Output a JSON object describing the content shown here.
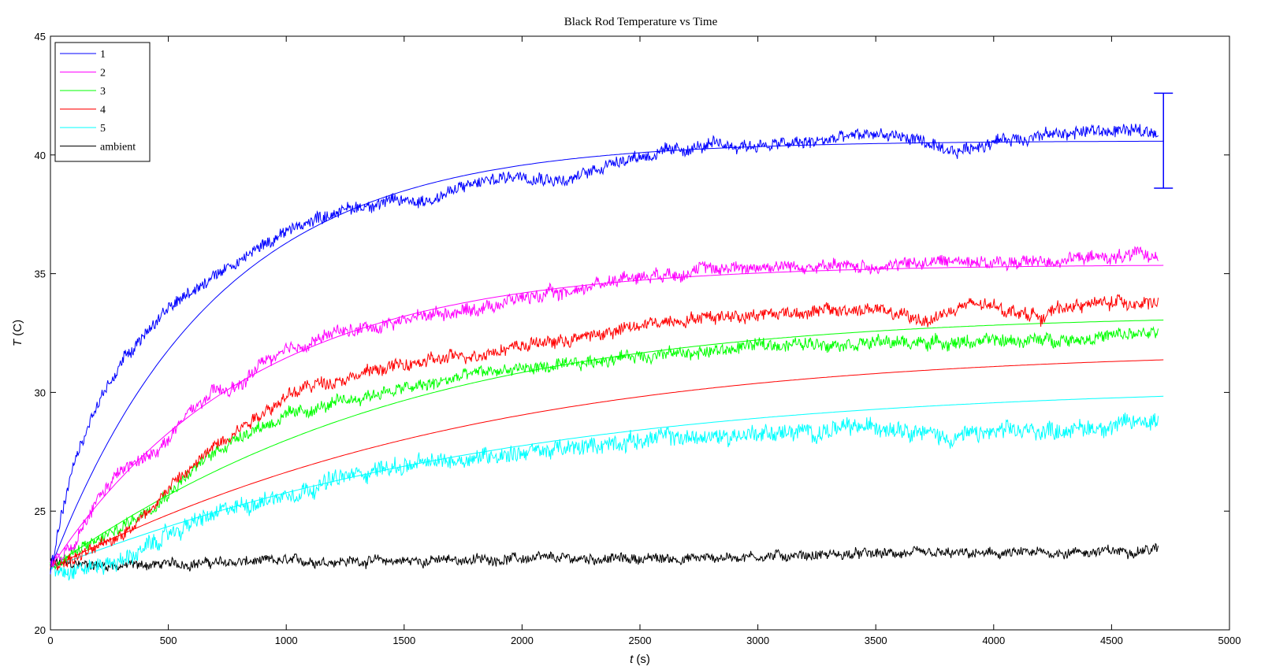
{
  "chart_data": {
    "type": "line",
    "title": "Black Rod Temperature vs Time",
    "xlabel": {
      "var": "t",
      "unit": " (s)"
    },
    "ylabel": {
      "var": "T",
      "unit": " (C)"
    },
    "xlim": [
      0,
      5000
    ],
    "ylim": [
      20,
      45
    ],
    "xticks": [
      0,
      500,
      1000,
      1500,
      2000,
      2500,
      3000,
      3500,
      4000,
      4500,
      5000
    ],
    "yticks": [
      20,
      25,
      30,
      35,
      40,
      45
    ],
    "grid": false,
    "legend_position": "top-left",
    "series": [
      {
        "name": "1",
        "color": "#0000ff",
        "measured": [
          [
            0,
            22.6
          ],
          [
            50,
            25.0
          ],
          [
            100,
            27.0
          ],
          [
            200,
            29.5
          ],
          [
            300,
            31.3
          ],
          [
            400,
            32.5
          ],
          [
            500,
            33.5
          ],
          [
            600,
            34.3
          ],
          [
            700,
            35.0
          ],
          [
            800,
            35.5
          ],
          [
            900,
            36.2
          ],
          [
            1000,
            36.8
          ],
          [
            1200,
            37.6
          ],
          [
            1400,
            38.0
          ],
          [
            1600,
            38.1
          ],
          [
            1800,
            38.8
          ],
          [
            2000,
            39.2
          ],
          [
            2200,
            38.9
          ],
          [
            2400,
            39.8
          ],
          [
            2600,
            40.1
          ],
          [
            2800,
            40.4
          ],
          [
            3000,
            40.4
          ],
          [
            3200,
            40.5
          ],
          [
            3500,
            40.9
          ],
          [
            3700,
            40.6
          ],
          [
            3800,
            40.0
          ],
          [
            4000,
            40.6
          ],
          [
            4200,
            40.8
          ],
          [
            4400,
            41.0
          ],
          [
            4700,
            41.0
          ]
        ],
        "fit": {
          "asymptote": 40.6,
          "start": 22.6,
          "tau": 700
        }
      },
      {
        "name": "2",
        "color": "#ff00ff",
        "measured": [
          [
            0,
            22.7
          ],
          [
            100,
            23.5
          ],
          [
            200,
            25.5
          ],
          [
            300,
            26.7
          ],
          [
            400,
            27.2
          ],
          [
            500,
            28.0
          ],
          [
            600,
            29.3
          ],
          [
            700,
            30.0
          ],
          [
            800,
            30.2
          ],
          [
            900,
            31.3
          ],
          [
            1000,
            31.7
          ],
          [
            1200,
            32.5
          ],
          [
            1400,
            32.8
          ],
          [
            1600,
            33.3
          ],
          [
            1800,
            33.5
          ],
          [
            2000,
            34.0
          ],
          [
            2200,
            34.2
          ],
          [
            2400,
            34.8
          ],
          [
            2600,
            35.0
          ],
          [
            2800,
            35.2
          ],
          [
            3000,
            35.3
          ],
          [
            3500,
            35.3
          ],
          [
            3900,
            35.6
          ],
          [
            4000,
            35.4
          ],
          [
            4300,
            35.6
          ],
          [
            4700,
            35.8
          ]
        ],
        "fit": {
          "asymptote": 35.4,
          "start": 22.6,
          "tau": 850
        }
      },
      {
        "name": "3",
        "color": "#00ff00",
        "measured": [
          [
            0,
            22.7
          ],
          [
            150,
            23.5
          ],
          [
            300,
            24.3
          ],
          [
            400,
            25.0
          ],
          [
            500,
            25.8
          ],
          [
            600,
            26.7
          ],
          [
            700,
            27.5
          ],
          [
            800,
            28.2
          ],
          [
            900,
            28.6
          ],
          [
            1000,
            29.0
          ],
          [
            1200,
            29.5
          ],
          [
            1400,
            30.0
          ],
          [
            1600,
            30.3
          ],
          [
            1800,
            30.8
          ],
          [
            2000,
            31.0
          ],
          [
            2200,
            31.1
          ],
          [
            2400,
            31.5
          ],
          [
            2600,
            31.6
          ],
          [
            2800,
            31.7
          ],
          [
            3000,
            32.0
          ],
          [
            3400,
            32.1
          ],
          [
            3800,
            32.1
          ],
          [
            4200,
            32.2
          ],
          [
            4400,
            32.3
          ],
          [
            4700,
            32.5
          ]
        ],
        "fit": {
          "asymptote": 33.3,
          "start": 22.6,
          "tau": 1000,
          "sigmoid": true
        }
      },
      {
        "name": "4",
        "color": "#ff0000",
        "measured": [
          [
            0,
            22.7
          ],
          [
            150,
            23.2
          ],
          [
            250,
            23.7
          ],
          [
            400,
            24.8
          ],
          [
            500,
            26.0
          ],
          [
            600,
            26.8
          ],
          [
            700,
            27.8
          ],
          [
            800,
            28.5
          ],
          [
            900,
            29.2
          ],
          [
            1000,
            29.8
          ],
          [
            1100,
            30.3
          ],
          [
            1200,
            30.5
          ],
          [
            1300,
            30.7
          ],
          [
            1400,
            31.0
          ],
          [
            1600,
            31.3
          ],
          [
            1800,
            31.6
          ],
          [
            2000,
            32.0
          ],
          [
            2200,
            32.2
          ],
          [
            2400,
            32.6
          ],
          [
            2600,
            33.0
          ],
          [
            2800,
            33.2
          ],
          [
            3000,
            33.3
          ],
          [
            3200,
            33.4
          ],
          [
            3500,
            33.5
          ],
          [
            3700,
            33.0
          ],
          [
            3900,
            33.7
          ],
          [
            4000,
            33.6
          ],
          [
            4200,
            33.2
          ],
          [
            4300,
            33.6
          ],
          [
            4500,
            33.8
          ],
          [
            4700,
            33.8
          ]
        ],
        "fit": {
          "asymptote": 31.8,
          "start": 22.6,
          "tau": 1200,
          "sigmoid": true
        }
      },
      {
        "name": "5",
        "color": "#00ffff",
        "measured": [
          [
            0,
            22.6
          ],
          [
            150,
            22.6
          ],
          [
            300,
            22.9
          ],
          [
            400,
            23.4
          ],
          [
            500,
            24.0
          ],
          [
            600,
            24.5
          ],
          [
            800,
            25.2
          ],
          [
            1000,
            25.7
          ],
          [
            1200,
            26.3
          ],
          [
            1400,
            26.8
          ],
          [
            1600,
            27.0
          ],
          [
            1800,
            27.3
          ],
          [
            2000,
            27.5
          ],
          [
            2200,
            27.6
          ],
          [
            2400,
            27.9
          ],
          [
            2600,
            28.1
          ],
          [
            2800,
            28.1
          ],
          [
            3000,
            28.3
          ],
          [
            3200,
            28.3
          ],
          [
            3400,
            28.5
          ],
          [
            3600,
            28.6
          ],
          [
            3800,
            28.1
          ],
          [
            4000,
            28.3
          ],
          [
            4200,
            28.4
          ],
          [
            4400,
            28.5
          ],
          [
            4600,
            28.7
          ],
          [
            4700,
            28.9
          ]
        ],
        "fit": {
          "asymptote": 30.3,
          "start": 22.6,
          "tau": 1300,
          "sigmoid": true
        }
      },
      {
        "name": "ambient",
        "color": "#000000",
        "measured": [
          [
            0,
            22.8
          ],
          [
            300,
            22.7
          ],
          [
            600,
            22.8
          ],
          [
            1000,
            22.9
          ],
          [
            1500,
            22.9
          ],
          [
            2000,
            23.0
          ],
          [
            2500,
            23.0
          ],
          [
            2700,
            23.0
          ],
          [
            3000,
            23.1
          ],
          [
            3500,
            23.2
          ],
          [
            4000,
            23.2
          ],
          [
            4500,
            23.3
          ],
          [
            4700,
            23.4
          ]
        ]
      }
    ],
    "error_bar": {
      "x": 4720,
      "center": 40.6,
      "low": 38.6,
      "high": 42.6,
      "color": "#0000ff"
    }
  }
}
